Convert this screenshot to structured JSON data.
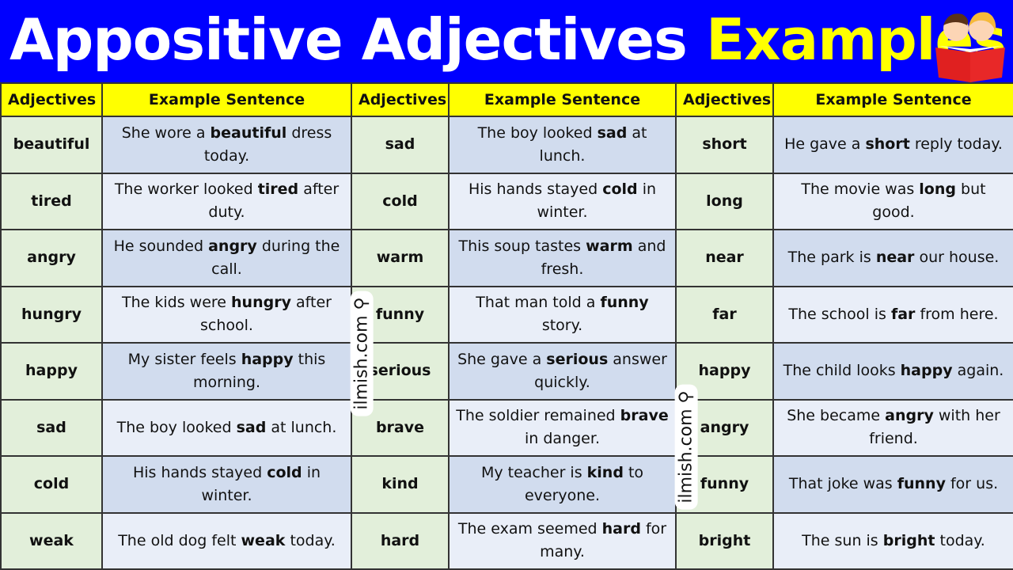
{
  "title": {
    "part1": "Appositive Adjectives",
    "part2": "Examples"
  },
  "colors": {
    "header_bg": "#0000ff",
    "title_highlight": "#ffff00",
    "column_header_bg": "#ffff00",
    "adjective_bg": "#e2efda",
    "sentence_bg_a": "#d1dcee",
    "sentence_bg_b": "#e9eef8"
  },
  "illustration": "two-kids-reading-red-book",
  "watermark": "ilmish.com",
  "columns": [
    "Adjectives",
    "Example Sentence",
    "Adjectives",
    "Example Sentence",
    "Adjectives",
    "Example Sentence"
  ],
  "rows": [
    [
      {
        "adj": "beautiful",
        "pre": "She wore a ",
        "b": "beautiful",
        "post": " dress today."
      },
      {
        "adj": "sad",
        "pre": "The boy looked ",
        "b": "sad",
        "post": " at lunch."
      },
      {
        "adj": "short",
        "pre": "He gave a ",
        "b": "short",
        "post": " reply today."
      }
    ],
    [
      {
        "adj": "tired",
        "pre": "The worker looked ",
        "b": "tired",
        "post": " after duty."
      },
      {
        "adj": "cold",
        "pre": "His hands stayed ",
        "b": "cold",
        "post": " in winter."
      },
      {
        "adj": "long",
        "pre": "The movie was ",
        "b": "long",
        "post": " but good."
      }
    ],
    [
      {
        "adj": "angry",
        "pre": "He sounded ",
        "b": "angry",
        "post": " during the call."
      },
      {
        "adj": "warm",
        "pre": "This soup tastes ",
        "b": "warm",
        "post": " and fresh."
      },
      {
        "adj": "near",
        "pre": "The park is ",
        "b": "near",
        "post": " our house."
      }
    ],
    [
      {
        "adj": "hungry",
        "pre": "The kids were ",
        "b": "hungry",
        "post": " after school."
      },
      {
        "adj": "funny",
        "pre": "That man told a ",
        "b": "funny",
        "post": " story."
      },
      {
        "adj": "far",
        "pre": "The school is ",
        "b": "far",
        "post": " from here."
      }
    ],
    [
      {
        "adj": "happy",
        "pre": "My sister feels ",
        "b": "happy",
        "post": " this morning."
      },
      {
        "adj": "serious",
        "pre": "She gave a ",
        "b": "serious",
        "post": " answer quickly."
      },
      {
        "adj": "happy",
        "pre": "The child looks ",
        "b": "happy",
        "post": " again."
      }
    ],
    [
      {
        "adj": "sad",
        "pre": "The boy looked ",
        "b": "sad",
        "post": " at lunch."
      },
      {
        "adj": "brave",
        "pre": "The soldier remained ",
        "b": "brave",
        "post": " in danger."
      },
      {
        "adj": "angry",
        "pre": "She became ",
        "b": "angry",
        "post": " with her friend."
      }
    ],
    [
      {
        "adj": "cold",
        "pre": "His hands stayed ",
        "b": "cold",
        "post": " in winter."
      },
      {
        "adj": "kind",
        "pre": "My teacher is ",
        "b": "kind",
        "post": " to everyone."
      },
      {
        "adj": "funny",
        "pre": "That joke was ",
        "b": "funny",
        "post": " for us."
      }
    ],
    [
      {
        "adj": "weak",
        "pre": "The old dog felt ",
        "b": "weak",
        "post": " today."
      },
      {
        "adj": "hard",
        "pre": "The exam seemed ",
        "b": "hard",
        "post": " for many."
      },
      {
        "adj": "bright",
        "pre": "The sun is ",
        "b": "bright",
        "post": " today."
      }
    ]
  ]
}
